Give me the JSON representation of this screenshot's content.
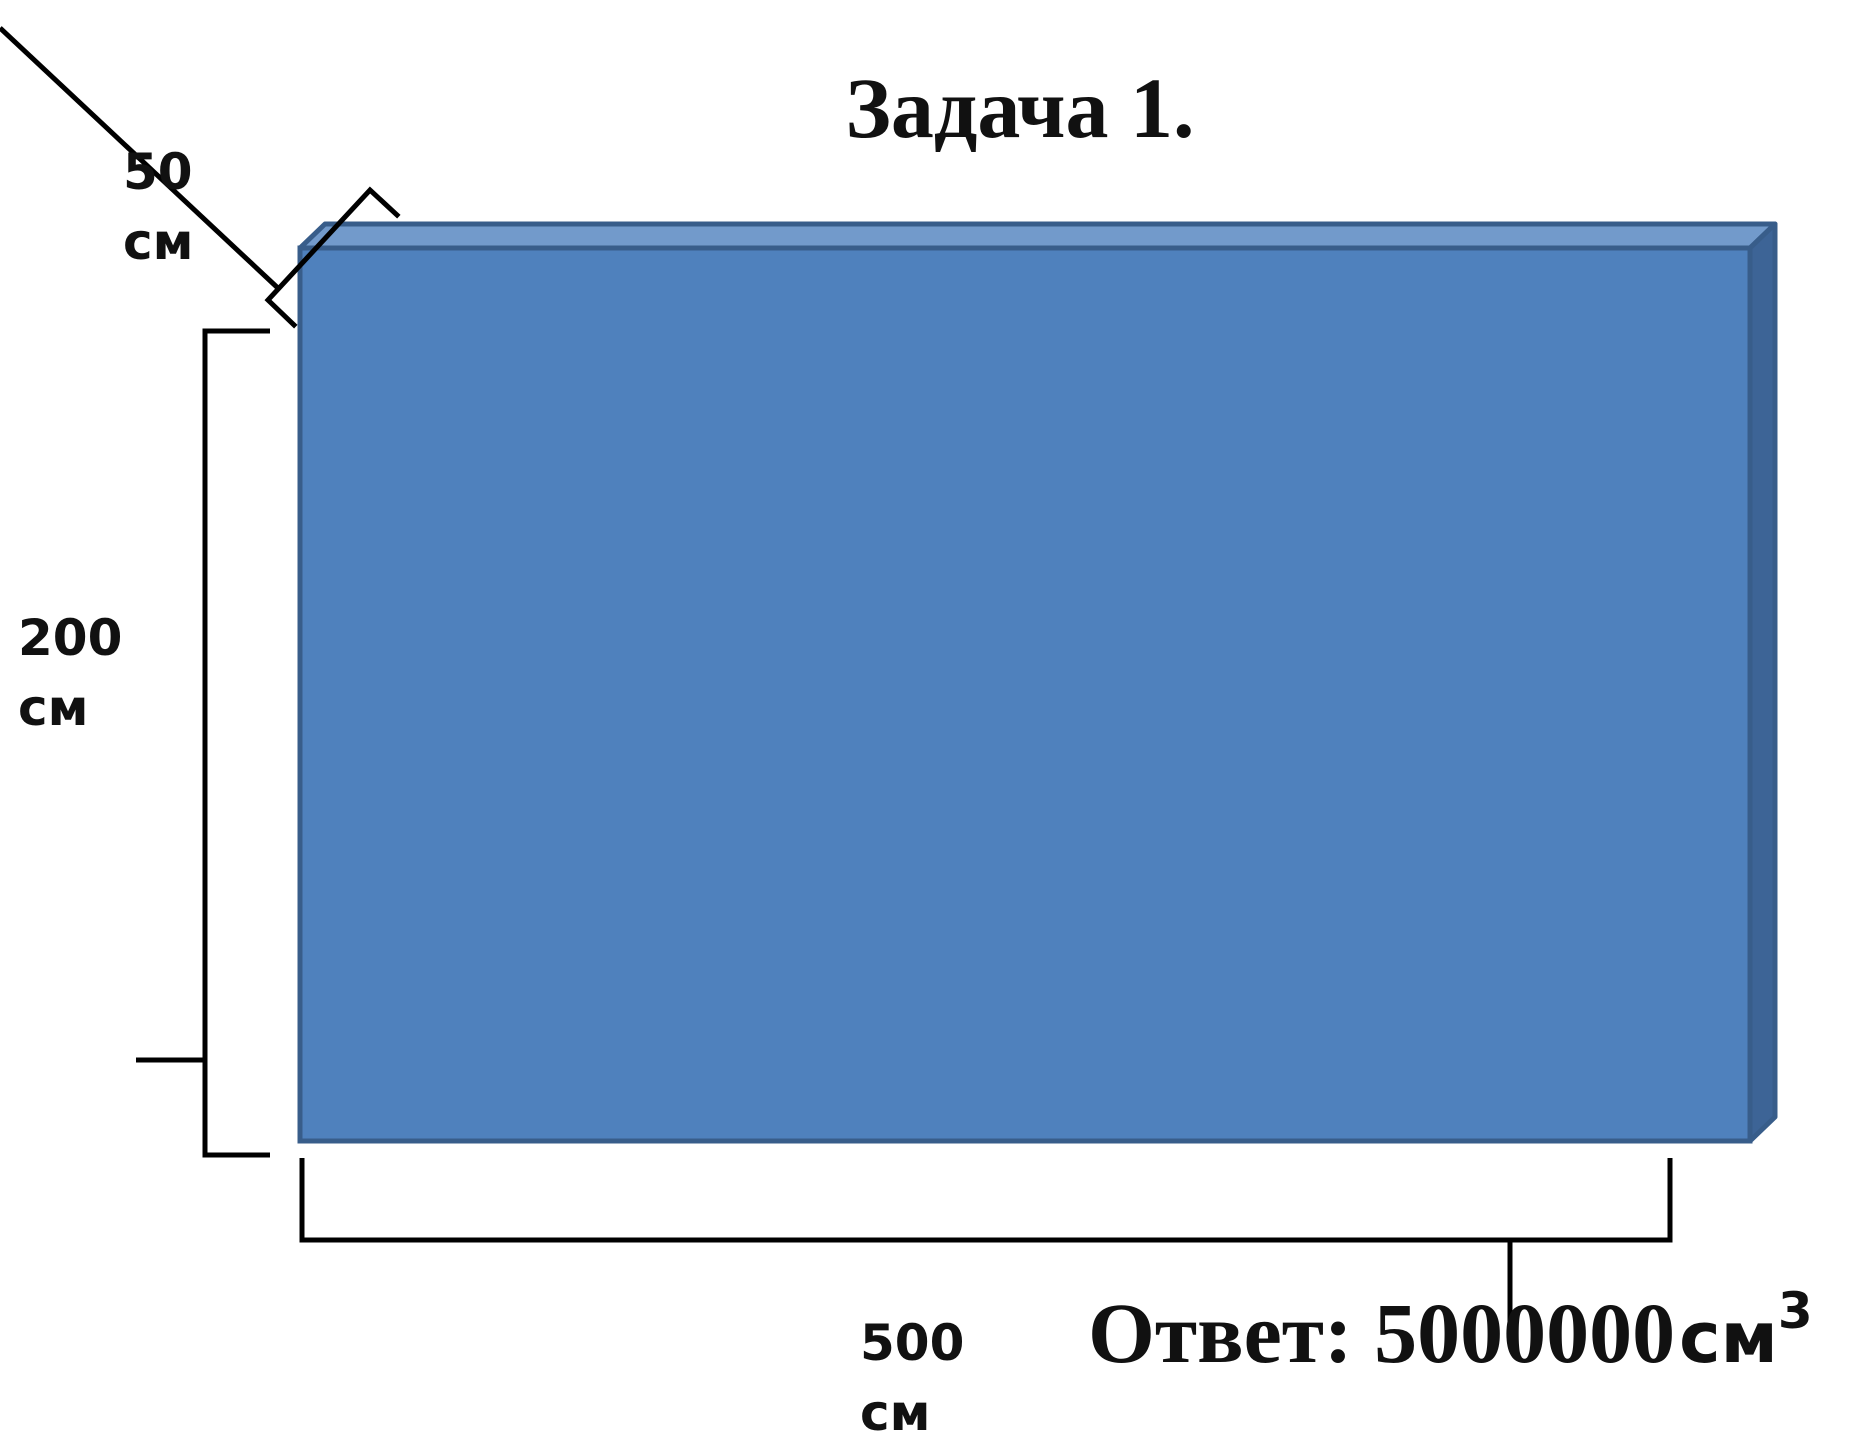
{
  "title": "Задача 1.",
  "dimensions": {
    "depth": {
      "value": "50",
      "unit": "см"
    },
    "height": {
      "value": "200",
      "unit": "см"
    },
    "width": {
      "value": "500",
      "unit": "см"
    }
  },
  "answer": {
    "prefix": "Ответ: 5000000",
    "unit": "см",
    "exponent": "3"
  },
  "colors": {
    "box_front": "#4f81bd",
    "box_top": "#729acb",
    "box_side": "#3d6496",
    "box_edge": "#385d8a",
    "lines": "#000000"
  }
}
